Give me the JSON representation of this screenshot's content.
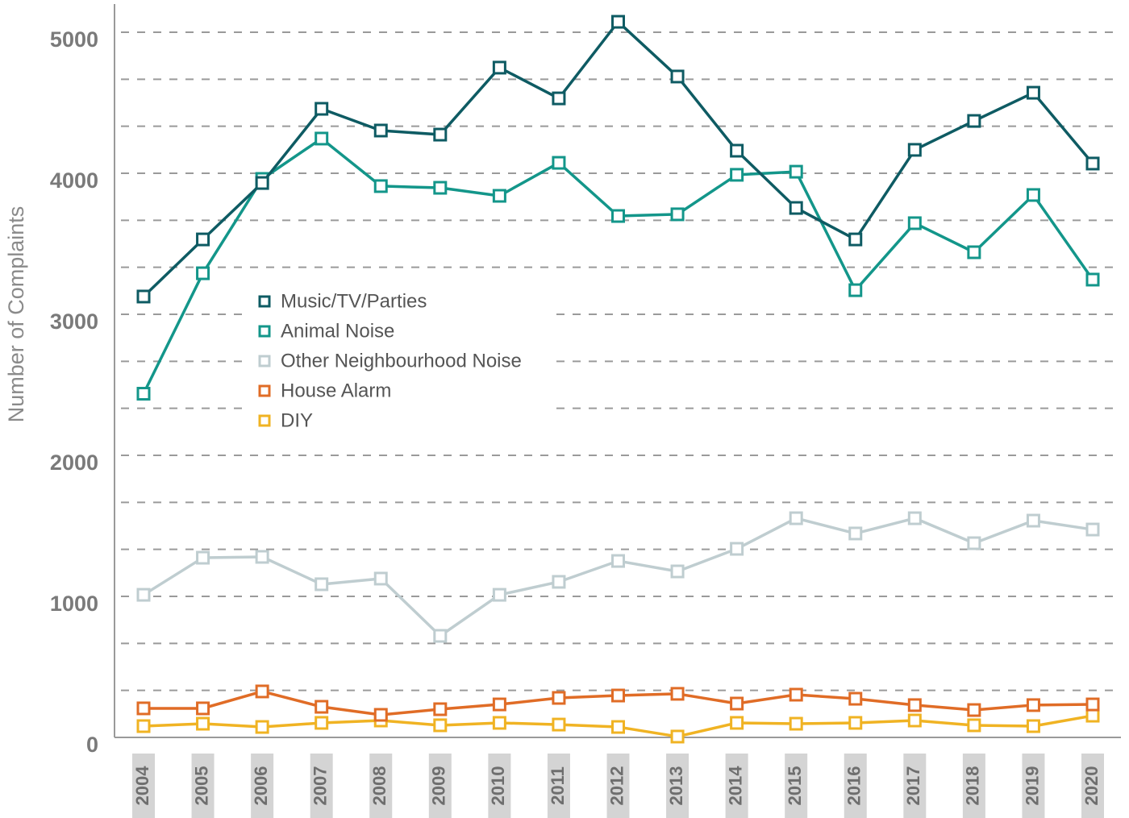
{
  "chart_data": {
    "type": "line",
    "y_label": "Number of Complaints",
    "categories": [
      "2004",
      "2005",
      "2006",
      "2007",
      "2008",
      "2009",
      "2010",
      "2011",
      "2012",
      "2013",
      "2014",
      "2015",
      "2016",
      "2017",
      "2018",
      "2019",
      "2020"
    ],
    "series": [
      {
        "name": "Music/TV/Parties",
        "color": "#0e5b63",
        "values": [
          3126,
          3531,
          3931,
          4457,
          4303,
          4274,
          4749,
          4531,
          5074,
          4686,
          4160,
          3754,
          3531,
          4166,
          4371,
          4571,
          4069
        ]
      },
      {
        "name": "Animal Noise",
        "color": "#13968a",
        "values": [
          2437,
          3291,
          3960,
          4246,
          3909,
          3897,
          3840,
          4074,
          3697,
          3709,
          3989,
          4011,
          3171,
          3646,
          3440,
          3846,
          3246
        ]
      },
      {
        "name": "Other Neighbourhood Noise",
        "color": "#bfcdd0",
        "values": [
          1011,
          1274,
          1280,
          1086,
          1126,
          720,
          1011,
          1103,
          1251,
          1177,
          1337,
          1554,
          1446,
          1554,
          1377,
          1537,
          1474
        ]
      },
      {
        "name": "House Alarm",
        "color": "#e06c26",
        "values": [
          206,
          206,
          326,
          217,
          160,
          200,
          234,
          280,
          297,
          309,
          240,
          303,
          274,
          229,
          194,
          229,
          234
        ]
      },
      {
        "name": "DIY",
        "color": "#f0b323",
        "values": [
          80,
          97,
          74,
          103,
          120,
          86,
          103,
          91,
          74,
          6,
          103,
          97,
          103,
          120,
          86,
          80,
          154
        ]
      }
    ],
    "ylim": [
      0,
      5200
    ],
    "yticks": [
      0,
      1000,
      2000,
      3000,
      4000,
      5000
    ],
    "minor_yticks": [
      333.3,
      666.7,
      1333.3,
      1666.7,
      2333.3,
      2666.7,
      3333.3,
      3666.7,
      4333.3,
      4666.7
    ],
    "grid": true,
    "legend": "center-left"
  }
}
